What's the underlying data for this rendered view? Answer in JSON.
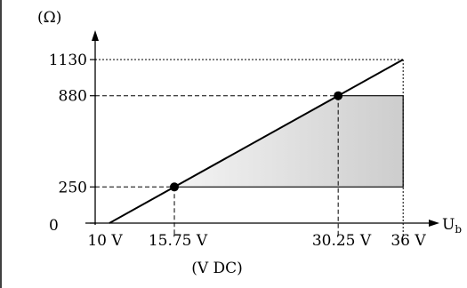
{
  "chart_data": {
    "type": "line",
    "ylabel": "(Ω)",
    "xlabel": "U",
    "xlabel_sub": "b",
    "unit_label": "(V DC)",
    "xlim": [
      10,
      38
    ],
    "ylim": [
      0,
      1250
    ],
    "x_ticks": [
      {
        "value": 10,
        "label": "10 V"
      },
      {
        "value": 15.75,
        "label": "15.75 V"
      },
      {
        "value": 30.25,
        "label": "30.25 V"
      },
      {
        "value": 36,
        "label": "36 V"
      }
    ],
    "y_ticks": [
      {
        "value": 0,
        "label": "0"
      },
      {
        "value": 250,
        "label": "250"
      },
      {
        "value": 880,
        "label": "880"
      },
      {
        "value": 1130,
        "label": "1130"
      }
    ],
    "series": [
      {
        "points": [
          [
            10,
            0
          ],
          [
            36,
            1130
          ]
        ]
      }
    ],
    "operating_points": [
      [
        15.75,
        250
      ],
      [
        30.25,
        880
      ]
    ],
    "shaded_region": {
      "vertices": [
        [
          15.75,
          250
        ],
        [
          30.25,
          880
        ],
        [
          36,
          880
        ],
        [
          36,
          250
        ]
      ],
      "fill": "#dcdcdc"
    },
    "colors": {
      "line": "#000000",
      "dashed": "#000000",
      "fill_light": "#f2f2f2",
      "fill_dark": "#cfcfcf"
    }
  }
}
